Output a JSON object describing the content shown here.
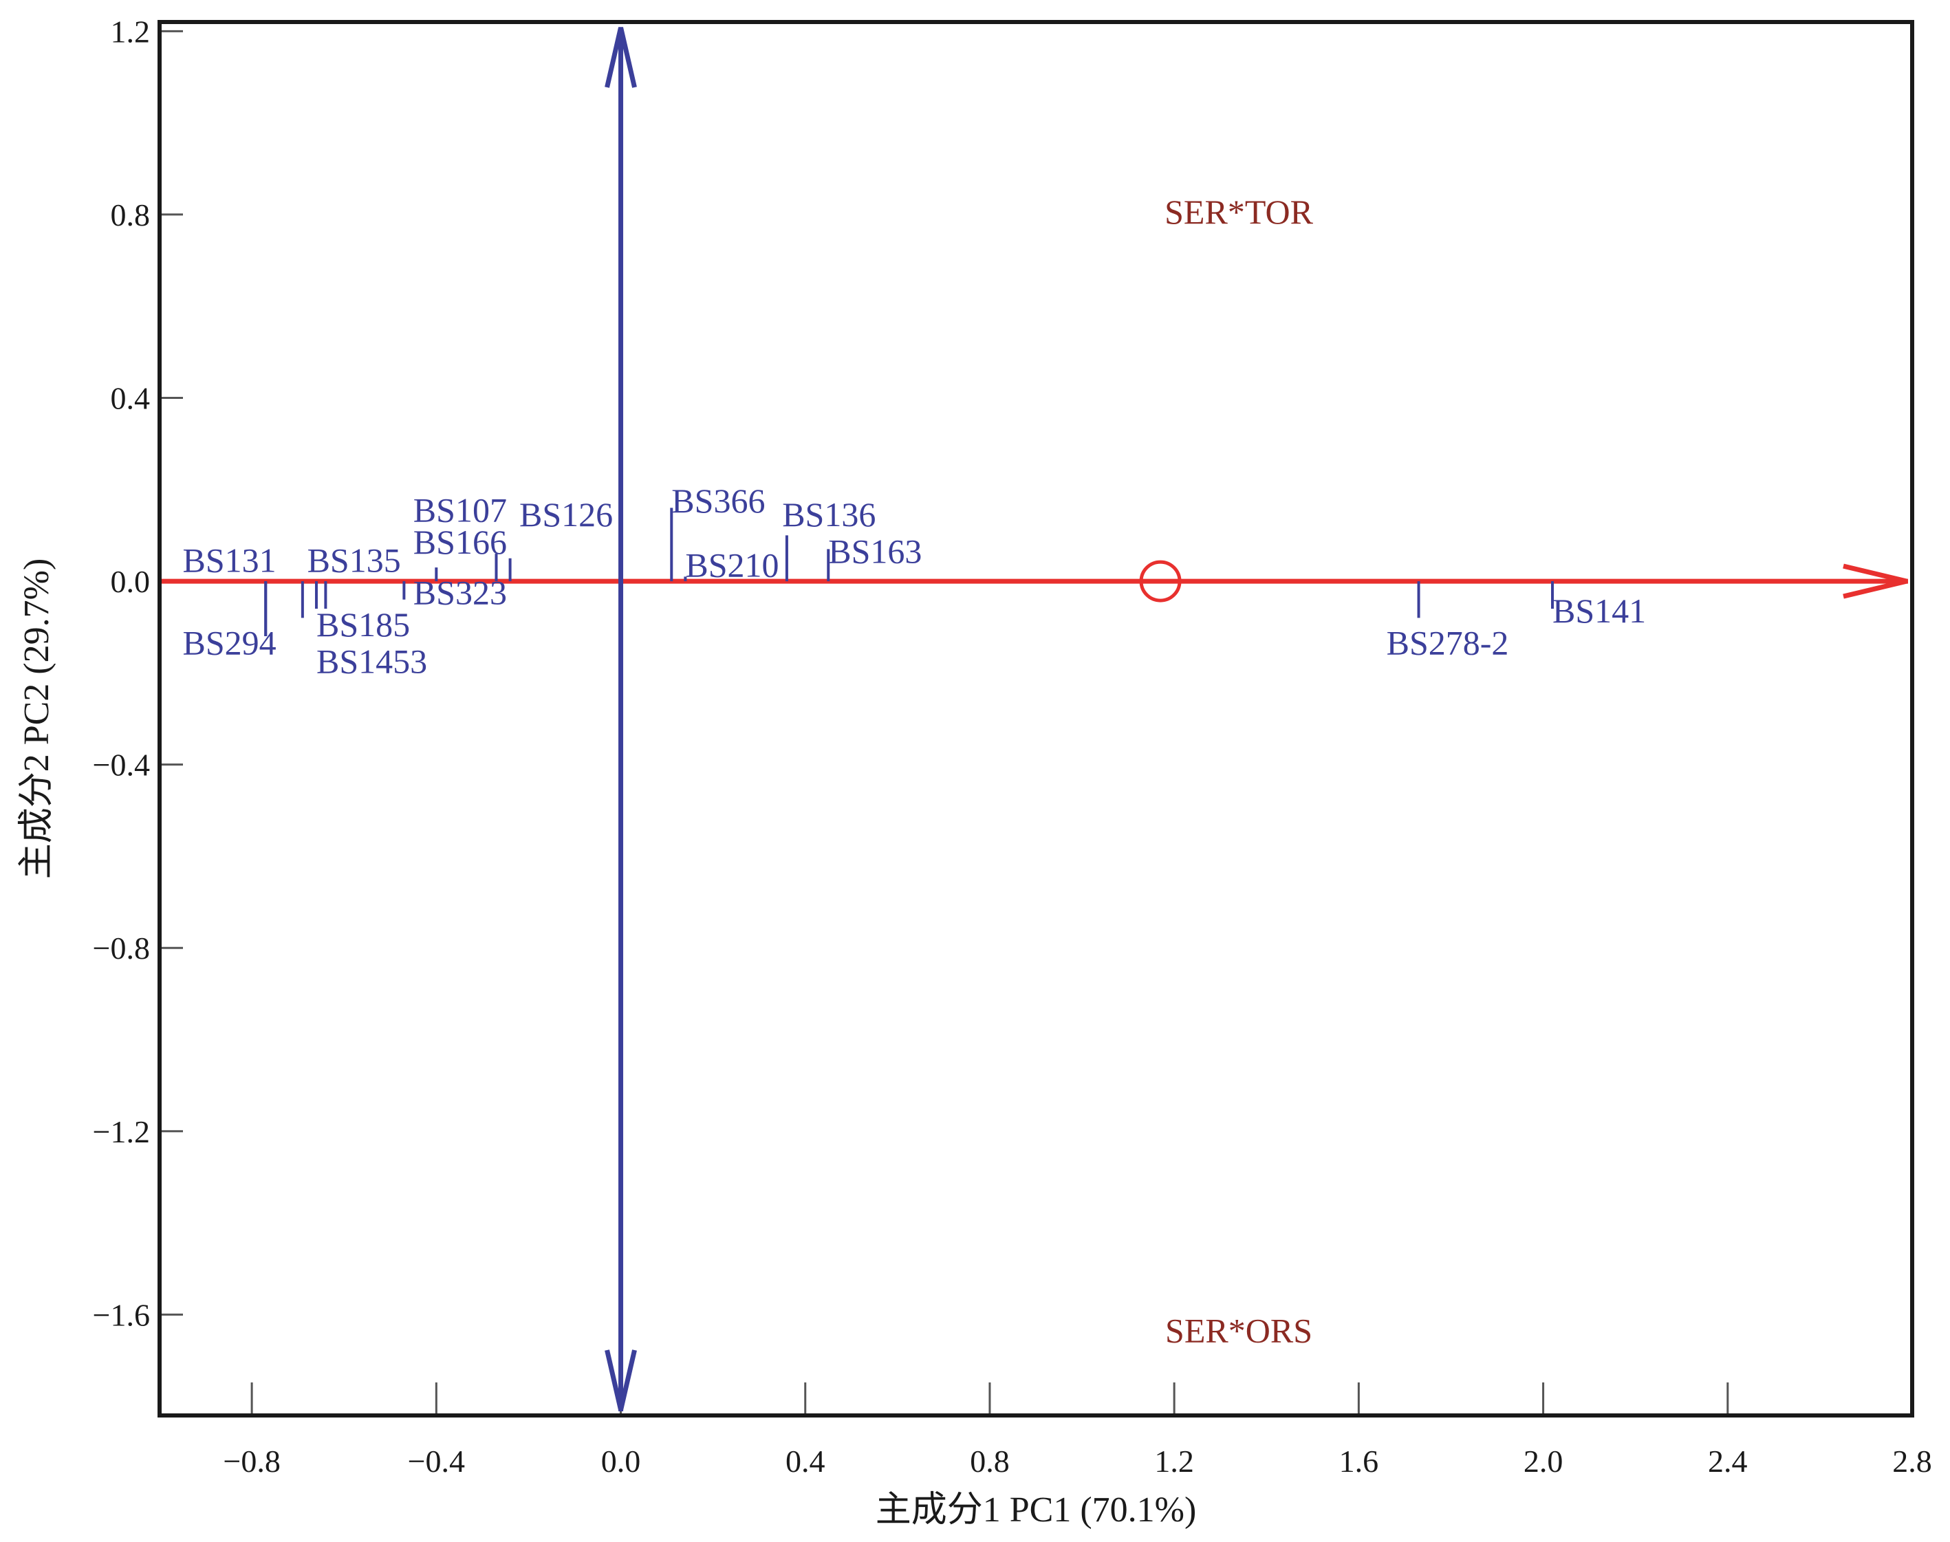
{
  "chart_data": {
    "type": "scatter",
    "title": "",
    "xlabel": "主成分1 PC1 (70.1%)",
    "ylabel": "主成分2 PC2 (29.7%)",
    "xlim": [
      -1.0,
      2.8
    ],
    "ylim": [
      -1.82,
      1.22
    ],
    "x_ticks": [
      {
        "value": -0.8,
        "label": "−0.8"
      },
      {
        "value": -0.4,
        "label": "−0.4"
      },
      {
        "value": 0.0,
        "label": "0.0"
      },
      {
        "value": 0.4,
        "label": "0.4"
      },
      {
        "value": 0.8,
        "label": "0.8"
      },
      {
        "value": 1.2,
        "label": "1.2"
      },
      {
        "value": 1.6,
        "label": "1.6"
      },
      {
        "value": 2.0,
        "label": "2.0"
      },
      {
        "value": 2.4,
        "label": "2.4"
      },
      {
        "value": 2.8,
        "label": "2.8"
      }
    ],
    "y_ticks": [
      {
        "value": 1.2,
        "label": "1.2"
      },
      {
        "value": 0.8,
        "label": "0.8"
      },
      {
        "value": 0.4,
        "label": "0.4"
      },
      {
        "value": 0.0,
        "label": "0.0"
      },
      {
        "value": -0.4,
        "label": "−0.4"
      },
      {
        "value": -0.8,
        "label": "−0.8"
      },
      {
        "value": -1.2,
        "label": "−1.2"
      },
      {
        "value": -1.6,
        "label": "−1.6"
      }
    ],
    "grid": false,
    "axis_lines": {
      "pc1_color": "#e8302e",
      "pc2_color": "#3b3f9a"
    },
    "environment_labels": [
      {
        "label": "SER*TOR",
        "x": 1.34,
        "y": 0.78
      },
      {
        "label": "SER*ORS",
        "x": 1.34,
        "y": -1.66
      }
    ],
    "average_environment": {
      "x": 1.17,
      "y": 0.0,
      "color": "#e8302e"
    },
    "points": [
      {
        "label": "BS131",
        "x": -0.77,
        "y": -0.12,
        "lx": -0.95,
        "ly": 0.02
      },
      {
        "label": "BS294",
        "x": -0.77,
        "y": -0.12,
        "lx": -0.95,
        "ly": -0.16
      },
      {
        "label": "BS135",
        "x": -0.69,
        "y": -0.08,
        "lx": -0.68,
        "ly": 0.02
      },
      {
        "label": "BS185",
        "x": -0.66,
        "y": -0.06,
        "lx": -0.66,
        "ly": -0.12
      },
      {
        "label": "BS1453",
        "x": -0.64,
        "y": -0.06,
        "lx": -0.66,
        "ly": -0.2
      },
      {
        "label": "BS323",
        "x": -0.47,
        "y": -0.04,
        "lx": -0.45,
        "ly": -0.05
      },
      {
        "label": "BS107",
        "x": -0.4,
        "y": 0.03,
        "lx": -0.45,
        "ly": 0.13
      },
      {
        "label": "BS166",
        "x": -0.27,
        "y": 0.06,
        "lx": -0.45,
        "ly": 0.06
      },
      {
        "label": "BS126",
        "x": -0.24,
        "y": 0.05,
        "lx": -0.22,
        "ly": 0.12
      },
      {
        "label": "BS366",
        "x": 0.11,
        "y": 0.16,
        "lx": 0.11,
        "ly": 0.15
      },
      {
        "label": "BS210",
        "x": 0.14,
        "y": 0.01,
        "lx": 0.14,
        "ly": 0.01
      },
      {
        "label": "BS136",
        "x": 0.36,
        "y": 0.1,
        "lx": 0.35,
        "ly": 0.12
      },
      {
        "label": "BS163",
        "x": 0.45,
        "y": 0.07,
        "lx": 0.45,
        "ly": 0.04
      },
      {
        "label": "BS278-2",
        "x": 1.73,
        "y": -0.08,
        "lx": 1.66,
        "ly": -0.16
      },
      {
        "label": "BS141",
        "x": 2.02,
        "y": -0.06,
        "lx": 2.02,
        "ly": -0.09
      }
    ],
    "colors": {
      "point": "#3b3f9a",
      "environment_text": "#8b2a22",
      "frame": "#1a1a1a",
      "tick_text": "#1a1a1a"
    }
  }
}
